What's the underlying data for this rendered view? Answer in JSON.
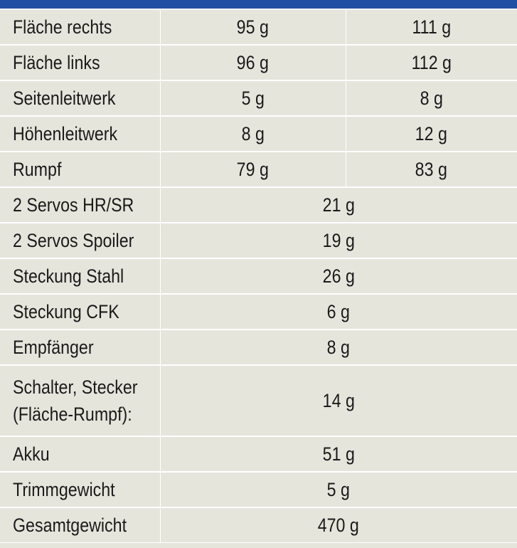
{
  "rows": [
    {
      "label": "Fläche rechts",
      "a": "95 g",
      "b": "111 g"
    },
    {
      "label": "Fläche links",
      "a": "96 g",
      "b": "112 g"
    },
    {
      "label": "Seitenleitwerk",
      "a": "5 g",
      "b": "8 g"
    },
    {
      "label": "Höhenleitwerk",
      "a": "8 g",
      "b": "12 g"
    },
    {
      "label": "Rumpf",
      "a": "79 g",
      "b": "83 g"
    }
  ],
  "shared_rows": [
    {
      "label": "2 Servos HR/SR",
      "value": "21 g"
    },
    {
      "label": "2 Servos Spoiler",
      "value": "19 g"
    },
    {
      "label": "Steckung Stahl",
      "value": "26 g"
    },
    {
      "label": "Steckung CFK",
      "value": "6 g"
    },
    {
      "label": "Empfänger",
      "value": "8 g"
    },
    {
      "label_line1": "Schalter, Stecker",
      "label_line2": "(Fläche-Rumpf):",
      "value": "14 g"
    },
    {
      "label": "Akku",
      "value": "51 g"
    },
    {
      "label": "Trimmgewicht",
      "value": "5 g"
    },
    {
      "label": "Gesamtgewicht",
      "value": "470 g"
    }
  ],
  "colors": {
    "header": "#1f4fa0",
    "cell_bg": "#e6e5dc",
    "grid": "#ffffff"
  }
}
